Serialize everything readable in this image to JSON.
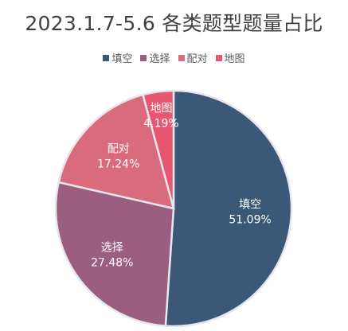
{
  "chart_data": {
    "type": "pie",
    "title": "2023.1.7-5.6 各类题型题量占比",
    "legend_position": "top",
    "categories": [
      "填空",
      "选择",
      "配对",
      "地图"
    ],
    "values": [
      51.09,
      27.48,
      17.24,
      4.19
    ],
    "value_labels": [
      "51.09%",
      "27.48%",
      "17.24%",
      "4.19%"
    ],
    "colors": [
      "#3b5878",
      "#9b5e7e",
      "#d96b7d",
      "#e8576f"
    ]
  }
}
